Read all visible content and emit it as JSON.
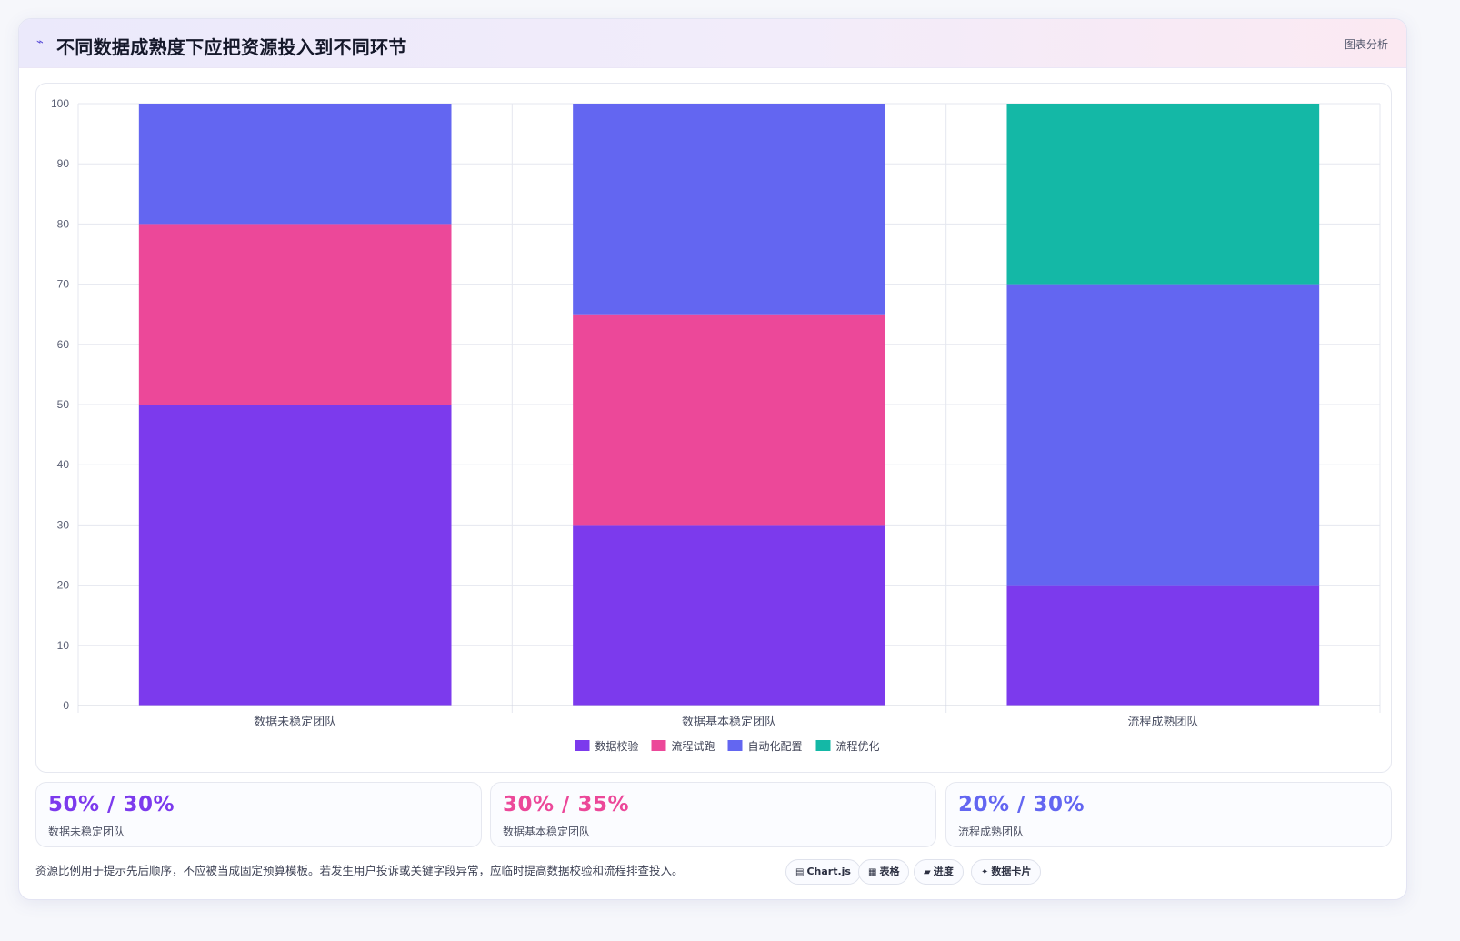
{
  "header": {
    "icon": "line-chart-icon",
    "icon_glyph": "⌁",
    "title": "不同数据成熟度下应把资源投入到不同环节",
    "badge": "图表分析"
  },
  "chart_data": {
    "type": "bar",
    "stacked": true,
    "title": "",
    "xlabel": "",
    "ylabel": "",
    "ylim": [
      0,
      100
    ],
    "yticks": [
      0,
      10,
      20,
      30,
      40,
      50,
      60,
      70,
      80,
      90,
      100
    ],
    "categories": [
      "数据未稳定团队",
      "数据基本稳定团队",
      "流程成熟团队"
    ],
    "series": [
      {
        "name": "数据校验",
        "color": "#7c3aed",
        "values": [
          50,
          30,
          20
        ]
      },
      {
        "name": "流程试跑",
        "color": "#ec4899",
        "values": [
          30,
          35,
          0
        ]
      },
      {
        "name": "自动化配置",
        "color": "#6366f1",
        "values": [
          20,
          35,
          50
        ]
      },
      {
        "name": "流程优化",
        "color": "#14b8a6",
        "values": [
          0,
          0,
          30
        ]
      }
    ],
    "grid": true,
    "legend_position": "bottom"
  },
  "stats": [
    {
      "value": "50% / 30%",
      "label": "数据未稳定团队",
      "color": "#7c3aed"
    },
    {
      "value": "30% / 35%",
      "label": "数据基本稳定团队",
      "color": "#ec4899"
    },
    {
      "value": "20% / 30%",
      "label": "流程成熟团队",
      "color": "#6366f1"
    }
  ],
  "footnote": "资源比例用于提示先后顺序，不应被当成固定预算模板。若发生用户投诉或关键字段异常，应临时提高数据校验和流程排查投入。",
  "chips": [
    {
      "icon": "chart-icon",
      "glyph": "▤",
      "label": "Chart.js"
    },
    {
      "icon": "table-icon",
      "glyph": "▦",
      "label": "表格"
    },
    {
      "icon": "progress-icon",
      "glyph": "▰",
      "label": "进度"
    },
    {
      "icon": "sparkle-icon",
      "glyph": "✦",
      "label": "数据卡片"
    }
  ]
}
